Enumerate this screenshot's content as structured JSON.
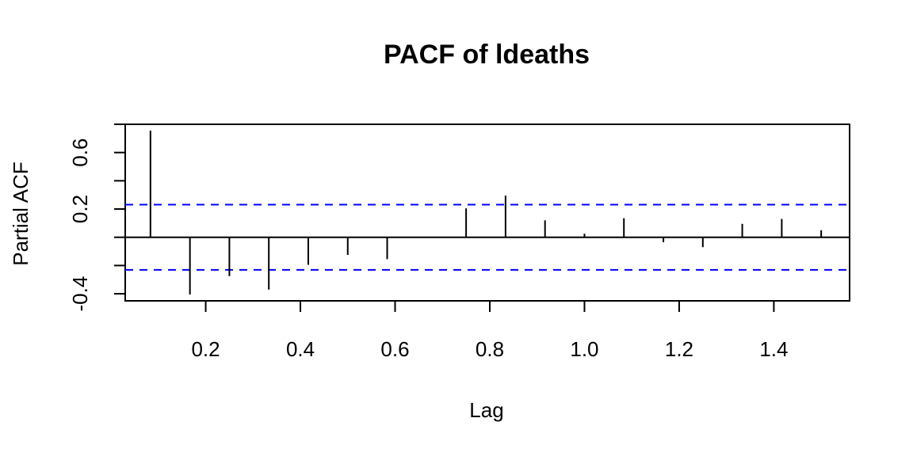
{
  "chart_data": {
    "type": "bar",
    "title": "PACF of ldeaths",
    "xlabel": "Lag",
    "ylabel": "Partial ACF",
    "xlim": [
      0.03,
      1.56
    ],
    "ylim": [
      -0.45,
      0.8
    ],
    "x_ticks": [
      0.2,
      0.4,
      0.6,
      0.8,
      1.0,
      1.2,
      1.4
    ],
    "x_tick_labels": [
      "0.2",
      "0.4",
      "0.6",
      "0.8",
      "1.0",
      "1.2",
      "1.4"
    ],
    "y_ticks": [
      -0.4,
      -0.2,
      0.0,
      0.2,
      0.4,
      0.6,
      0.8
    ],
    "y_tick_labels": [
      "-0.4",
      "",
      "",
      "0.2",
      "",
      "0.6",
      ""
    ],
    "confidence_limit": 0.231,
    "confidence_color": "#0000ff",
    "lags": [
      0.0833,
      0.1667,
      0.25,
      0.3333,
      0.4167,
      0.5,
      0.5833,
      0.6667,
      0.75,
      0.8333,
      0.9167,
      1.0,
      1.0833,
      1.1667,
      1.25,
      1.3333,
      1.4167,
      1.5
    ],
    "values": [
      0.755,
      -0.405,
      -0.275,
      -0.37,
      -0.195,
      -0.125,
      -0.155,
      0.005,
      0.205,
      0.295,
      0.12,
      0.025,
      0.135,
      -0.035,
      -0.07,
      0.095,
      0.13,
      0.05
    ]
  }
}
